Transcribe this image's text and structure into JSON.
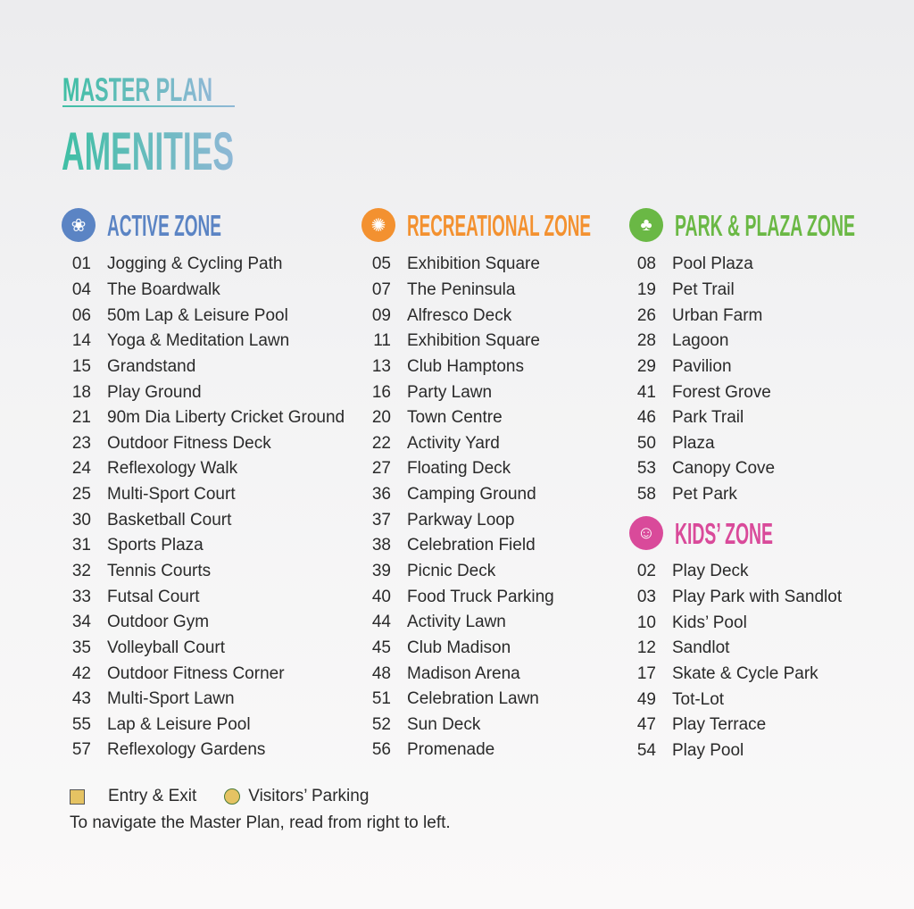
{
  "header": {
    "kicker": "MASTER PLAN",
    "title": "AMENITIES"
  },
  "colors": {
    "active": "#5b84c4",
    "recreational": "#f39130",
    "park": "#6ab845",
    "kids": "#d94a9a"
  },
  "zones": [
    {
      "id": "active",
      "title": "ACTIVE ZONE",
      "icon": "lotus-icon",
      "items": [
        {
          "num": "01",
          "name": "Jogging & Cycling Path"
        },
        {
          "num": "04",
          "name": "The Boardwalk"
        },
        {
          "num": "06",
          "name": "50m Lap & Leisure Pool"
        },
        {
          "num": "14",
          "name": "Yoga & Meditation Lawn"
        },
        {
          "num": "15",
          "name": "Grandstand"
        },
        {
          "num": "18",
          "name": "Play Ground"
        },
        {
          "num": "21",
          "name": "90m Dia Liberty Cricket Ground"
        },
        {
          "num": "23",
          "name": "Outdoor Fitness Deck"
        },
        {
          "num": "24",
          "name": "Reflexology Walk"
        },
        {
          "num": "25",
          "name": "Multi-Sport Court"
        },
        {
          "num": "30",
          "name": "Basketball Court"
        },
        {
          "num": "31",
          "name": "Sports Plaza"
        },
        {
          "num": "32",
          "name": "Tennis Courts"
        },
        {
          "num": "33",
          "name": "Futsal Court"
        },
        {
          "num": "34",
          "name": "Outdoor Gym"
        },
        {
          "num": "35",
          "name": "Volleyball Court"
        },
        {
          "num": "42",
          "name": "Outdoor Fitness Corner"
        },
        {
          "num": "43",
          "name": "Multi-Sport Lawn"
        },
        {
          "num": "55",
          "name": "Lap & Leisure Pool"
        },
        {
          "num": "57",
          "name": "Reflexology Gardens"
        }
      ]
    },
    {
      "id": "recreational",
      "title": "RECREATIONAL ZONE",
      "icon": "people-circle-icon",
      "items": [
        {
          "num": "05",
          "name": "Exhibition Square"
        },
        {
          "num": "07",
          "name": "The Peninsula"
        },
        {
          "num": "09",
          "name": "Alfresco Deck"
        },
        {
          "num": "11",
          "name": "Exhibition Square"
        },
        {
          "num": "13",
          "name": "Club Hamptons"
        },
        {
          "num": "16",
          "name": "Party Lawn"
        },
        {
          "num": "20",
          "name": "Town Centre"
        },
        {
          "num": "22",
          "name": "Activity Yard"
        },
        {
          "num": "27",
          "name": "Floating Deck"
        },
        {
          "num": "36",
          "name": "Camping Ground"
        },
        {
          "num": "37",
          "name": "Parkway Loop"
        },
        {
          "num": "38",
          "name": "Celebration Field"
        },
        {
          "num": "39",
          "name": "Picnic Deck"
        },
        {
          "num": "40",
          "name": "Food Truck Parking"
        },
        {
          "num": "44",
          "name": "Activity Lawn"
        },
        {
          "num": "45",
          "name": "Club Madison"
        },
        {
          "num": "48",
          "name": "Madison Arena"
        },
        {
          "num": "51",
          "name": "Celebration Lawn"
        },
        {
          "num": "52",
          "name": "Sun Deck"
        },
        {
          "num": "56",
          "name": "Promenade"
        }
      ]
    },
    {
      "id": "park",
      "title": "PARK & PLAZA ZONE",
      "icon": "tree-icon",
      "items": [
        {
          "num": "08",
          "name": "Pool Plaza"
        },
        {
          "num": "19",
          "name": "Pet Trail"
        },
        {
          "num": "26",
          "name": "Urban Farm"
        },
        {
          "num": "28",
          "name": "Lagoon"
        },
        {
          "num": "29",
          "name": "Pavilion"
        },
        {
          "num": "41",
          "name": "Forest Grove"
        },
        {
          "num": "46",
          "name": "Park Trail"
        },
        {
          "num": "50",
          "name": "Plaza"
        },
        {
          "num": "53",
          "name": "Canopy Cove"
        },
        {
          "num": "58",
          "name": "Pet Park"
        }
      ]
    },
    {
      "id": "kids",
      "title": "KIDS’ ZONE",
      "icon": "child-icon",
      "items": [
        {
          "num": "02",
          "name": "Play Deck"
        },
        {
          "num": "03",
          "name": "Play Park with Sandlot"
        },
        {
          "num": "10",
          "name": "Kids’ Pool"
        },
        {
          "num": "12",
          "name": "Sandlot"
        },
        {
          "num": "17",
          "name": "Skate & Cycle Park"
        },
        {
          "num": "49",
          "name": "Tot-Lot"
        },
        {
          "num": "47",
          "name": "Play Terrace"
        },
        {
          "num": "54",
          "name": "Play Pool"
        }
      ]
    }
  ],
  "legend": {
    "entry": "Entry & Exit",
    "parking": "Visitors’ Parking",
    "note": "To navigate the Master Plan, read from right to left."
  }
}
